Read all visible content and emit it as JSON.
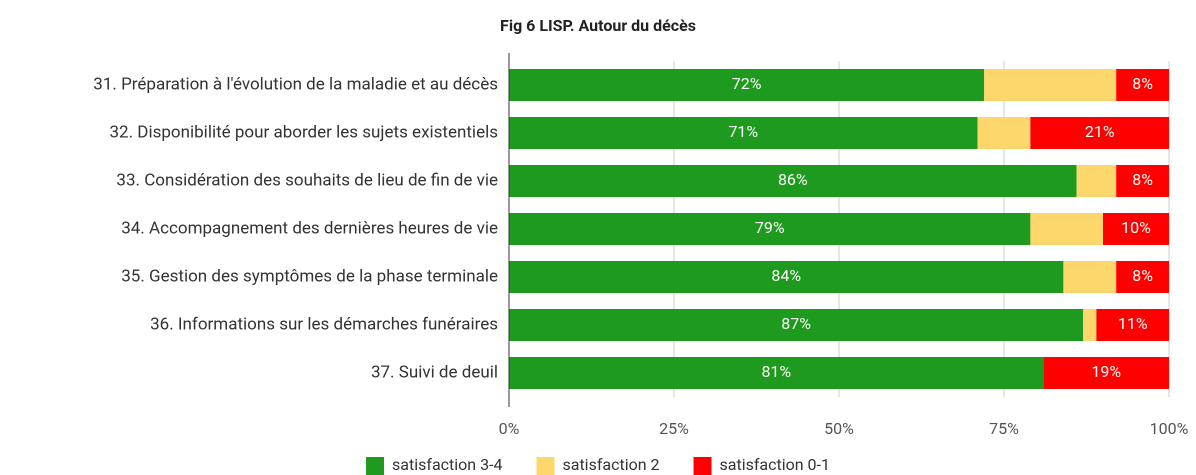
{
  "chart_data": {
    "type": "stacked-bar-horizontal",
    "title": "Fig 6 LISP. Autour du décès",
    "categories": [
      "31. Préparation à l'évolution de la maladie et au décès",
      "32. Disponibilité pour aborder les sujets existentiels",
      "33. Considération des souhaits de lieu de fin de vie",
      "34. Accompagnement des dernières heures de vie",
      "35. Gestion des symptômes de la phase terminale",
      "36. Informations sur les démarches funéraires",
      "37. Suivi de deuil"
    ],
    "series": [
      {
        "name": "satisfaction 3-4",
        "color": "#1e9b1e",
        "values": [
          72,
          71,
          86,
          79,
          84,
          87,
          81
        ],
        "value_labels": [
          "72%",
          "71%",
          "86%",
          "79%",
          "84%",
          "87%",
          "81%"
        ]
      },
      {
        "name": "satisfaction 2",
        "color": "#fdd76b",
        "values": [
          20,
          8,
          6,
          11,
          8,
          2,
          0
        ]
      },
      {
        "name": "satisfaction 0-1",
        "color": "#ff0000",
        "values": [
          8,
          21,
          8,
          10,
          8,
          11,
          19
        ],
        "value_labels": [
          "8%",
          "21%",
          "8%",
          "10%",
          "8%",
          "11%",
          "19%"
        ]
      }
    ],
    "xlim": [
      0,
      100
    ],
    "xticks": [
      {
        "value": 0,
        "label": "0%"
      },
      {
        "value": 25,
        "label": "25%"
      },
      {
        "value": 50,
        "label": "50%"
      },
      {
        "value": 75,
        "label": "75%"
      },
      {
        "value": 100,
        "label": "100%"
      }
    ],
    "grid": true,
    "legend": "bottom"
  }
}
